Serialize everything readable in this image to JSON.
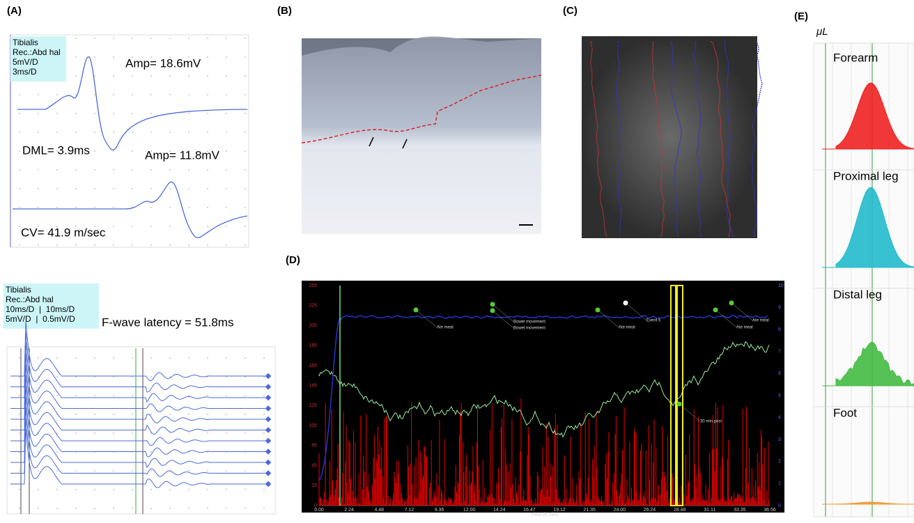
{
  "panel_a": {
    "label": "(A)",
    "info_box": [
      "Tibialis",
      "Rec.:Abd hal",
      "5mV/D",
      "3ms/D"
    ],
    "annotations": [
      "Amp= 18.6mV",
      "DML= 3.9ms",
      "Amp= 11.8mV",
      "CV= 41.9 m/sec"
    ],
    "fwave_box": [
      "Tibialis",
      "Rec.:Abd hal",
      "10ms/D  |  10ms/D",
      "5mV/D  |  0.5mV/D"
    ],
    "fwave_label": "F-wave latency = 51.8ms"
  },
  "panel_b": {
    "label": "(B)"
  },
  "panel_c": {
    "label": "(C)"
  },
  "panel_d": {
    "label": "(D)",
    "x_axis_title": "Time (h:min)",
    "x_ticks": [
      "0.00",
      "2.24",
      "4.48",
      "7.12",
      "9.36",
      "12.00",
      "14.24",
      "16.47",
      "19.12",
      "21.35",
      "24.00",
      "26.24",
      "28.48",
      "31.11",
      "33.35",
      "36.56"
    ],
    "y_ticks": [
      "255",
      "225",
      "205",
      "185",
      "165",
      "145",
      "125",
      "105",
      "85",
      "45",
      "15",
      "0"
    ],
    "y2_ticks": [
      "10",
      "9",
      "8",
      "7",
      "6",
      "5",
      "4",
      "3",
      "2",
      "1",
      "0"
    ],
    "events": [
      "Ate meal",
      "Bowel movement",
      "Bowel movement",
      "Event 5",
      "Ate meal",
      "Ate meal",
      "Ate meal",
      "30 min post"
    ]
  },
  "panel_e": {
    "label": "(E)",
    "unit": "μL",
    "sites": [
      "Forearm",
      "Proximal leg",
      "Distal leg",
      "Foot"
    ]
  }
}
